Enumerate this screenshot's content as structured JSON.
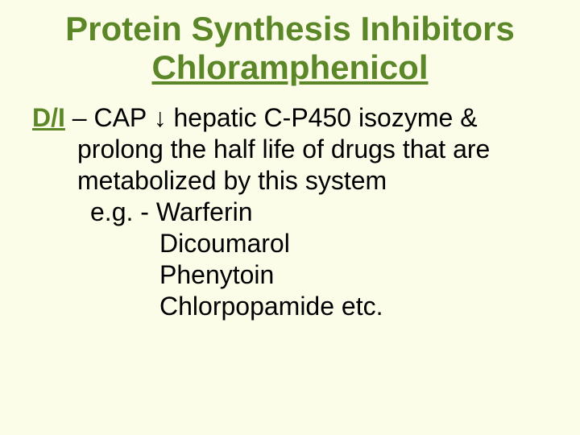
{
  "title": {
    "line1": "Protein Synthesis Inhibitors",
    "line2": "Chloramphenicol",
    "color": "#5c8729",
    "fontsize": 42,
    "underline_line2": true
  },
  "body": {
    "label": "D/I",
    "label_color": "#5c8729",
    "text_color": "#000000",
    "fontsize": 32,
    "line1_rest": " – CAP ↓ hepatic C-P450  isozyme &",
    "line2": "prolong the half life of  drugs that are",
    "line3": "metabolized by this system",
    "line4": "e.g. - Warferin",
    "line5": "Dicoumarol",
    "line6": "Phenytoin",
    "line7": "Chlorpopamide  etc."
  },
  "background_color": "#fcfde9"
}
